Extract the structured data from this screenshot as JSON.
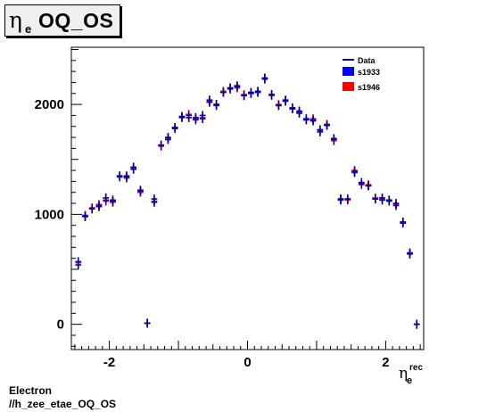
{
  "title": {
    "symbol": "η",
    "subscript": "e",
    "text": "OQ_OS"
  },
  "footer": {
    "line1": "Electron",
    "line2": "//h_zee_etae_OQ_OS"
  },
  "colors": {
    "data": "#00008b",
    "s1933": "#0000ff",
    "s1946": "#ff0000"
  },
  "chart_data": {
    "type": "scatter",
    "title": "η_e OQ_OS",
    "xlabel": "η_e^rec",
    "ylabel": "",
    "xlim": [
      -2.55,
      2.55
    ],
    "ylim": [
      -230,
      2520
    ],
    "xticks": [
      -2,
      0,
      2
    ],
    "yticks": [
      0,
      1000,
      2000
    ],
    "xbin_halfwidth": 0.05,
    "legend": {
      "position": "top-right",
      "entries": [
        "Data",
        "s1933",
        "s1946"
      ]
    },
    "x": [
      -2.45,
      -2.35,
      -2.25,
      -2.15,
      -2.05,
      -1.95,
      -1.85,
      -1.75,
      -1.65,
      -1.55,
      -1.45,
      -1.35,
      -1.25,
      -1.15,
      -1.05,
      -0.95,
      -0.85,
      -0.75,
      -0.65,
      -0.55,
      -0.45,
      -0.35,
      -0.25,
      -0.15,
      -0.05,
      0.05,
      0.15,
      0.25,
      0.35,
      0.45,
      0.55,
      0.65,
      0.75,
      0.85,
      0.95,
      1.05,
      1.15,
      1.25,
      1.35,
      1.45,
      1.55,
      1.65,
      1.75,
      1.85,
      1.95,
      2.05,
      2.15,
      2.25,
      2.35,
      2.45
    ],
    "series": [
      {
        "name": "Data",
        "values": [
          540,
          980,
          1050,
          1070,
          1150,
          1120,
          1350,
          1340,
          1430,
          1220,
          10,
          1140,
          1630,
          1700,
          1790,
          1890,
          1880,
          1880,
          1900,
          2020,
          2000,
          2110,
          2150,
          2170,
          2080,
          2110,
          2110,
          2240,
          2090,
          1990,
          2030,
          1960,
          1940,
          1860,
          1850,
          1770,
          1810,
          1690,
          1140,
          1140,
          1390,
          1290,
          1260,
          1140,
          1130,
          1130,
          1100,
          930,
          640,
          0
        ]
      },
      {
        "name": "s1933",
        "values": [
          570,
          990,
          1050,
          1080,
          1130,
          1130,
          1340,
          1350,
          1410,
          1210,
          10,
          1110,
          1630,
          1680,
          1780,
          1880,
          1900,
          1860,
          1870,
          2040,
          1990,
          2110,
          2140,
          2160,
          2080,
          2100,
          2120,
          2230,
          2090,
          1990,
          2040,
          1970,
          1920,
          1870,
          1860,
          1750,
          1810,
          1680,
          1130,
          1140,
          1380,
          1280,
          1260,
          1140,
          1150,
          1120,
          1080,
          920,
          650,
          0
        ]
      },
      {
        "name": "s1946",
        "values": [
          560,
          980,
          1060,
          1090,
          1120,
          1110,
          1350,
          1330,
          1420,
          1200,
          10,
          1120,
          1620,
          1690,
          1790,
          1890,
          1910,
          1870,
          1880,
          2030,
          2000,
          2120,
          2150,
          2150,
          2090,
          2100,
          2110,
          2240,
          2080,
          2000,
          2030,
          1960,
          1930,
          1860,
          1870,
          1760,
          1820,
          1670,
          1140,
          1130,
          1400,
          1270,
          1270,
          1150,
          1140,
          1130,
          1090,
          930,
          640,
          0
        ]
      }
    ]
  }
}
